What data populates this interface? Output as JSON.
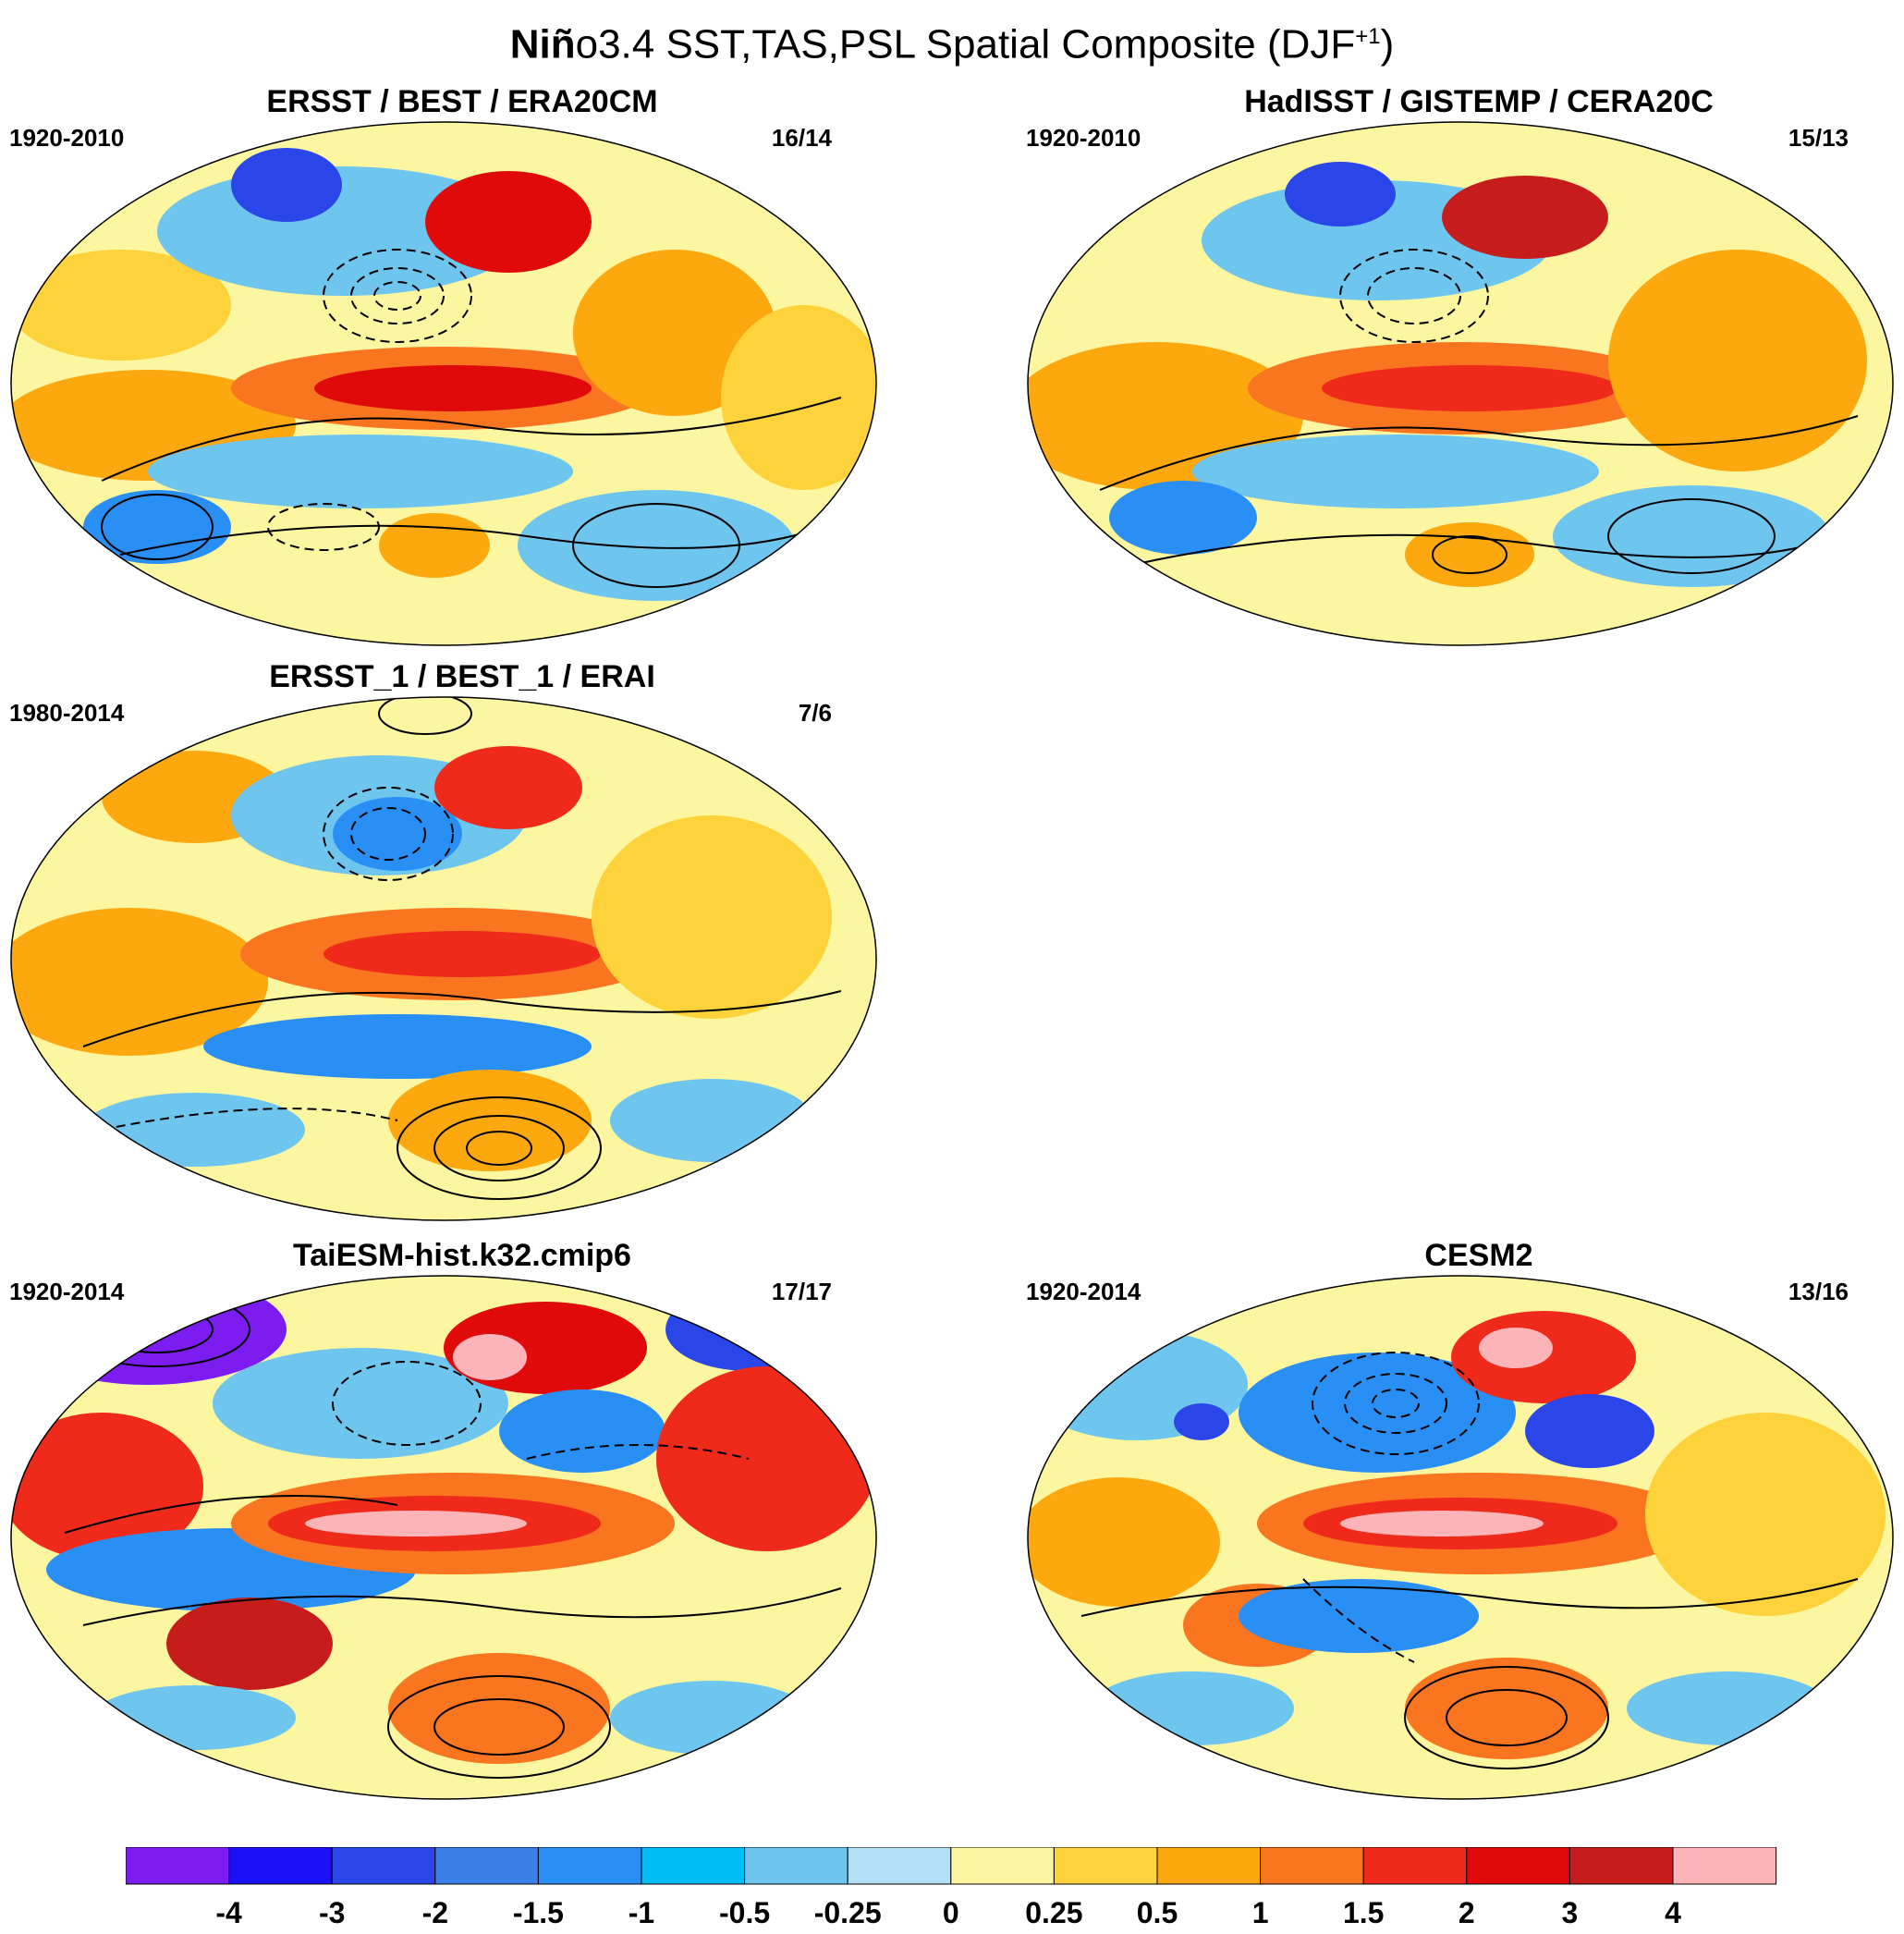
{
  "title": {
    "bold_part": "Niñ",
    "rest": "o3.4 SST,TAS,PSL Spatial Composite (DJF",
    "superscript": "+1",
    "close": ")"
  },
  "panels": [
    {
      "title": "ERSST / BEST / ERA20CM",
      "period": "1920-2010",
      "count": "16/14"
    },
    {
      "title": "HadISST / GISTEMP / CERA20C",
      "period": "1920-2010",
      "count": "15/13"
    },
    {
      "title": "ERSST_1 / BEST_1 / ERAI",
      "period": "1980-2014",
      "count": "7/6"
    },
    {
      "title": "TaiESM-hist.k32.cmip6",
      "period": "1920-2014",
      "count": "17/17"
    },
    {
      "title": "CESM2",
      "period": "1920-2014",
      "count": "13/16"
    }
  ],
  "colorbar": {
    "labels": [
      "-4",
      "-3",
      "-2",
      "-1.5",
      "-1",
      "-0.5",
      "-0.25",
      "0",
      "0.25",
      "0.5",
      "1",
      "1.5",
      "2",
      "3",
      "4"
    ],
    "colors": [
      "#7d1cf0",
      "#1a0ff5",
      "#2a46e8",
      "#3a7ee8",
      "#2a8ff5",
      "#00bdf5",
      "#6ec6ee",
      "#b4e0f6",
      "#fdf6a0",
      "#fdd23a",
      "#fca80e",
      "#f97520",
      "#ef2a1a",
      "#e00a0a",
      "#c61c1c",
      "#fdb4b8"
    ]
  }
}
